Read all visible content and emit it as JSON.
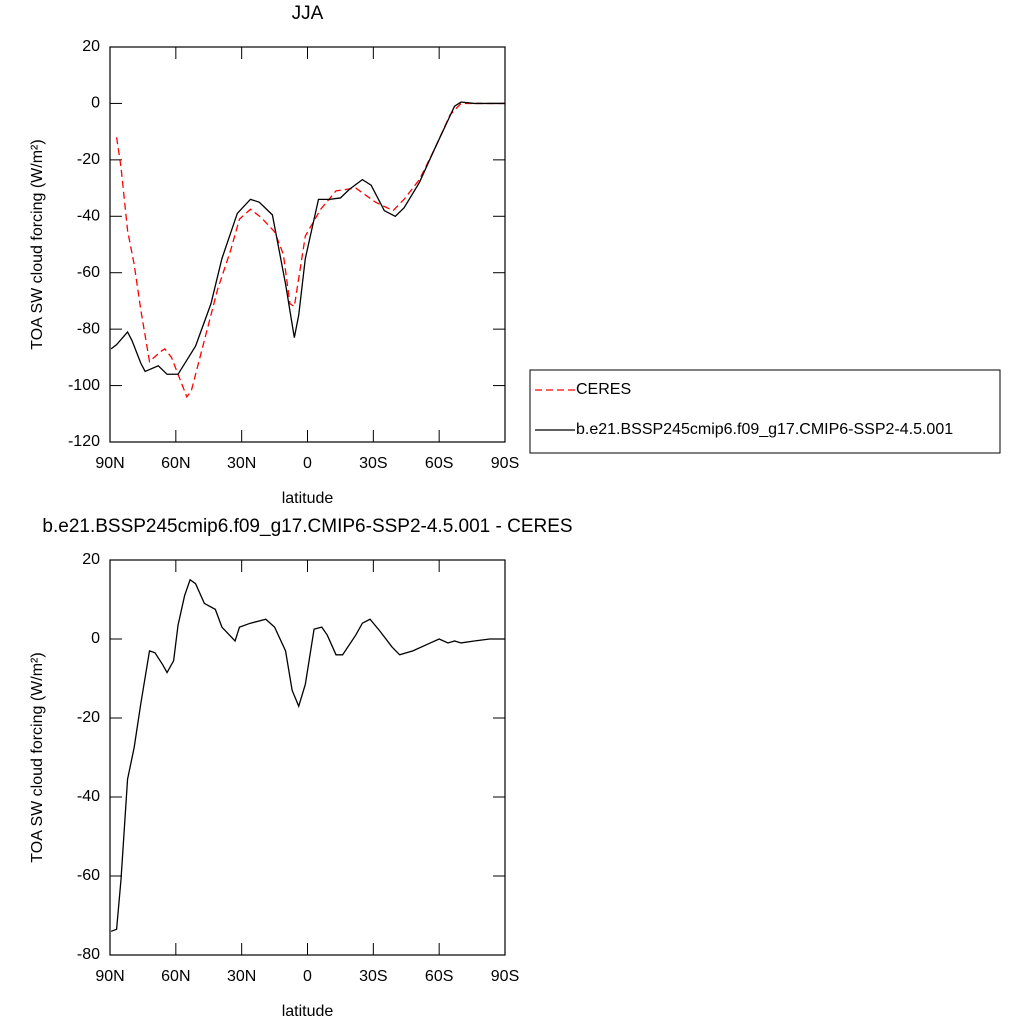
{
  "chart_data": [
    {
      "type": "line",
      "title": "JJA",
      "xlabel": "latitude",
      "ylabel": "TOA SW cloud forcing (W/m²)",
      "xlim": [
        90,
        -90
      ],
      "xticks": [
        {
          "value": 90,
          "label": "90N"
        },
        {
          "value": 60,
          "label": "60N"
        },
        {
          "value": 30,
          "label": "30N"
        },
        0,
        {
          "value": -30,
          "label": "30S"
        },
        {
          "value": -60,
          "label": "60S"
        },
        {
          "value": -90,
          "label": "90S"
        }
      ],
      "ylim": [
        -120,
        20
      ],
      "yticks": [
        -120,
        -100,
        -80,
        -60,
        -40,
        -20,
        0,
        20
      ],
      "legend": "right",
      "series": [
        {
          "name": "CERES",
          "color": "#ff0000",
          "dash": true,
          "x": [
            87,
            85,
            82,
            79,
            76,
            72,
            67,
            65,
            62,
            59,
            55,
            53,
            47,
            41,
            35,
            31,
            26,
            21,
            15,
            11,
            8,
            6,
            1,
            -6,
            -13,
            -22,
            -31,
            -39,
            -44,
            -51,
            -58,
            -65,
            -70,
            -90
          ],
          "values": [
            -12,
            -22.5,
            -45,
            -57,
            -73,
            -91.5,
            -88,
            -87,
            -90,
            -96,
            -104,
            -102,
            -84,
            -66,
            -52,
            -41,
            -37.5,
            -40.5,
            -45.5,
            -53.5,
            -71,
            -72,
            -47,
            -37.5,
            -31,
            -30,
            -35,
            -38,
            -34,
            -27,
            -16,
            -4,
            0,
            0
          ]
        },
        {
          "name": "b.e21.BSSP245cmip6.f09_g17.CMIP6-SSP2-4.5.001",
          "color": "#000000",
          "dash": false,
          "x": [
            89.5,
            87,
            82,
            80,
            76,
            74,
            68,
            64,
            59,
            51,
            44,
            39,
            32,
            26,
            22,
            16,
            10,
            6,
            4,
            1,
            -5,
            -10,
            -15,
            -19,
            -25,
            -29,
            -35,
            -40,
            -44,
            -51,
            -58,
            -64,
            -67,
            -70,
            -76,
            -90
          ],
          "values": [
            -87,
            -85.5,
            -81,
            -84,
            -92,
            -95,
            -93,
            -96,
            -96,
            -86,
            -71,
            -55,
            -39,
            -34,
            -35,
            -39.5,
            -64,
            -83,
            -75,
            -55,
            -34,
            -34,
            -33.5,
            -30.5,
            -27,
            -29,
            -38,
            -40,
            -37,
            -28,
            -16,
            -6,
            -1,
            0.5,
            0,
            0
          ]
        }
      ]
    },
    {
      "type": "line",
      "title": "b.e21.BSSP245cmip6.f09_g17.CMIP6-SSP2-4.5.001 - CERES",
      "xlabel": "latitude",
      "ylabel": "TOA SW cloud forcing (W/m²)",
      "xlim": [
        90,
        -90
      ],
      "xticks": [
        {
          "value": 90,
          "label": "90N"
        },
        {
          "value": 60,
          "label": "60N"
        },
        {
          "value": 30,
          "label": "30N"
        },
        0,
        {
          "value": -30,
          "label": "30S"
        },
        {
          "value": -60,
          "label": "60S"
        },
        {
          "value": -90,
          "label": "90S"
        }
      ],
      "ylim": [
        -80,
        20
      ],
      "yticks": [
        -80,
        -60,
        -40,
        -20,
        0,
        20
      ],
      "series": [
        {
          "color": "#000000",
          "dash": false,
          "x": [
            89.5,
            87,
            85,
            82,
            79,
            76,
            72,
            69.5,
            66,
            64,
            61,
            59,
            56,
            53.5,
            51,
            47,
            42,
            39,
            33,
            31,
            26,
            19,
            15,
            10,
            7,
            4,
            1,
            -3,
            -6.5,
            -9,
            -13,
            -16,
            -22,
            -25,
            -28.5,
            -33,
            -38.5,
            -42,
            -48,
            -56,
            -60,
            -64,
            -67,
            -70,
            -76,
            -83,
            -90
          ],
          "values": [
            -74,
            -73.5,
            -61,
            -35.5,
            -27.5,
            -16.5,
            -3,
            -3.5,
            -6.5,
            -8.5,
            -5.5,
            3.5,
            11,
            15,
            14,
            9,
            7.5,
            3,
            -0.5,
            3,
            4,
            5,
            3,
            -3,
            -13,
            -17,
            -11.5,
            2.5,
            3,
            1,
            -4,
            -4,
            1,
            4,
            5,
            2,
            -2,
            -4,
            -3,
            -1,
            0,
            -1,
            -0.5,
            -1,
            -0.5,
            0,
            0
          ]
        }
      ]
    }
  ]
}
